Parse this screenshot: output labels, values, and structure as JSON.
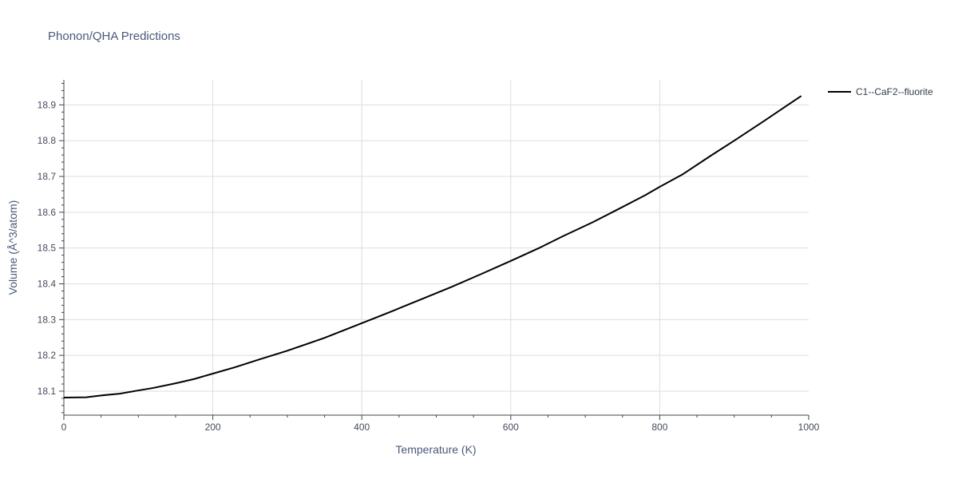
{
  "chart_data": {
    "type": "line",
    "title": "Phonon/QHA Predictions",
    "xlabel": "Temperature (K)",
    "ylabel": "Volume (Å^3/atom)",
    "xlim": [
      0,
      1000
    ],
    "ylim": [
      18.033,
      18.97
    ],
    "x_ticks": [
      0,
      200,
      400,
      600,
      800,
      1000
    ],
    "y_ticks": [
      18.1,
      18.2,
      18.3,
      18.4,
      18.5,
      18.6,
      18.7,
      18.8,
      18.9
    ],
    "x_tick_labels": [
      "0",
      "200",
      "400",
      "600",
      "800",
      "1000"
    ],
    "y_tick_labels": [
      "18.1",
      "18.2",
      "18.3",
      "18.4",
      "18.5",
      "18.6",
      "18.7",
      "18.8",
      "18.9"
    ],
    "grid": true,
    "legend_position": "top-right-outside",
    "series": [
      {
        "name": "C1--CaF2--fluorite",
        "color": "#000000",
        "x": [
          0,
          30,
          50,
          75,
          100,
          120,
          150,
          175,
          200,
          230,
          260,
          300,
          350,
          400,
          440,
          480,
          520,
          560,
          600,
          640,
          670,
          710,
          740,
          780,
          800,
          830,
          870,
          900,
          940,
          970,
          990
        ],
        "y": [
          18.082,
          18.083,
          18.088,
          18.093,
          18.102,
          18.109,
          18.122,
          18.134,
          18.149,
          18.167,
          18.187,
          18.213,
          18.249,
          18.29,
          18.323,
          18.357,
          18.391,
          18.427,
          18.464,
          18.502,
          18.533,
          18.572,
          18.604,
          18.647,
          18.671,
          18.705,
          18.76,
          18.8,
          18.855,
          18.897,
          18.925
        ]
      }
    ]
  }
}
